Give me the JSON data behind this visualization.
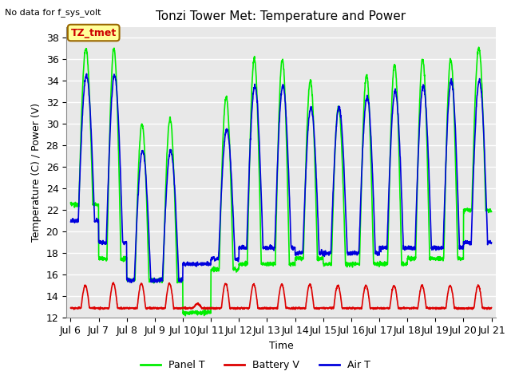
{
  "title": "Tonzi Tower Met: Temperature and Power",
  "top_left_text": "No data for f_sys_volt",
  "ylabel": "Temperature (C) / Power (V)",
  "xlabel": "Time",
  "ylim": [
    12,
    39
  ],
  "yticks": [
    12,
    14,
    16,
    18,
    20,
    22,
    24,
    26,
    28,
    30,
    32,
    34,
    36,
    38
  ],
  "xtick_labels": [
    "Jul 6",
    "Jul 7",
    "Jul 8",
    "Jul 9",
    "Jul 10",
    "Jul 11",
    "Jul 12",
    "Jul 13",
    "Jul 14",
    "Jul 15",
    "Jul 16",
    "Jul 17",
    "Jul 18",
    "Jul 19",
    "Jul 20",
    "Jul 21"
  ],
  "annotation_label": "TZ_tmet",
  "annotation_color": "#cc0000",
  "annotation_bg": "#ffff99",
  "annotation_border": "#996600",
  "panel_T_color": "#00ee00",
  "battery_V_color": "#dd0000",
  "air_T_color": "#0000dd",
  "figure_bg_color": "#ffffff",
  "axes_bg_color": "#e8e8e8",
  "grid_color": "#ffffff",
  "legend_labels": [
    "Panel T",
    "Battery V",
    "Air T"
  ],
  "title_fontsize": 11,
  "axis_label_fontsize": 9,
  "tick_fontsize": 9,
  "legend_fontsize": 9,
  "annotation_fontsize": 9
}
